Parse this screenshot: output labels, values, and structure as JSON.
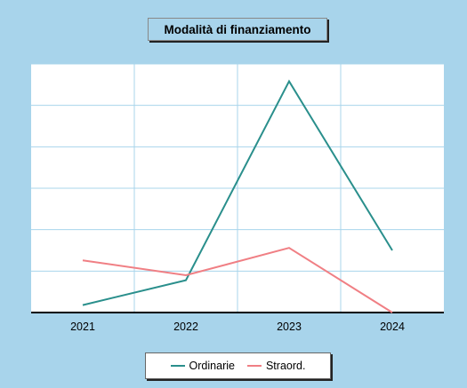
{
  "chart_data": {
    "type": "line",
    "title": "Modalità di finanziamento",
    "categories": [
      "2021",
      "2022",
      "2023",
      "2024"
    ],
    "series": [
      {
        "name": "Ordinarie",
        "color": "#2a8f8c",
        "values": [
          0.3,
          1.3,
          9.3,
          2.5
        ]
      },
      {
        "name": "Straord.",
        "color": "#f07f84",
        "values": [
          2.1,
          1.5,
          2.6,
          0
        ]
      }
    ],
    "ylim": [
      0,
      10
    ],
    "grid": true,
    "legend": "bottom"
  }
}
